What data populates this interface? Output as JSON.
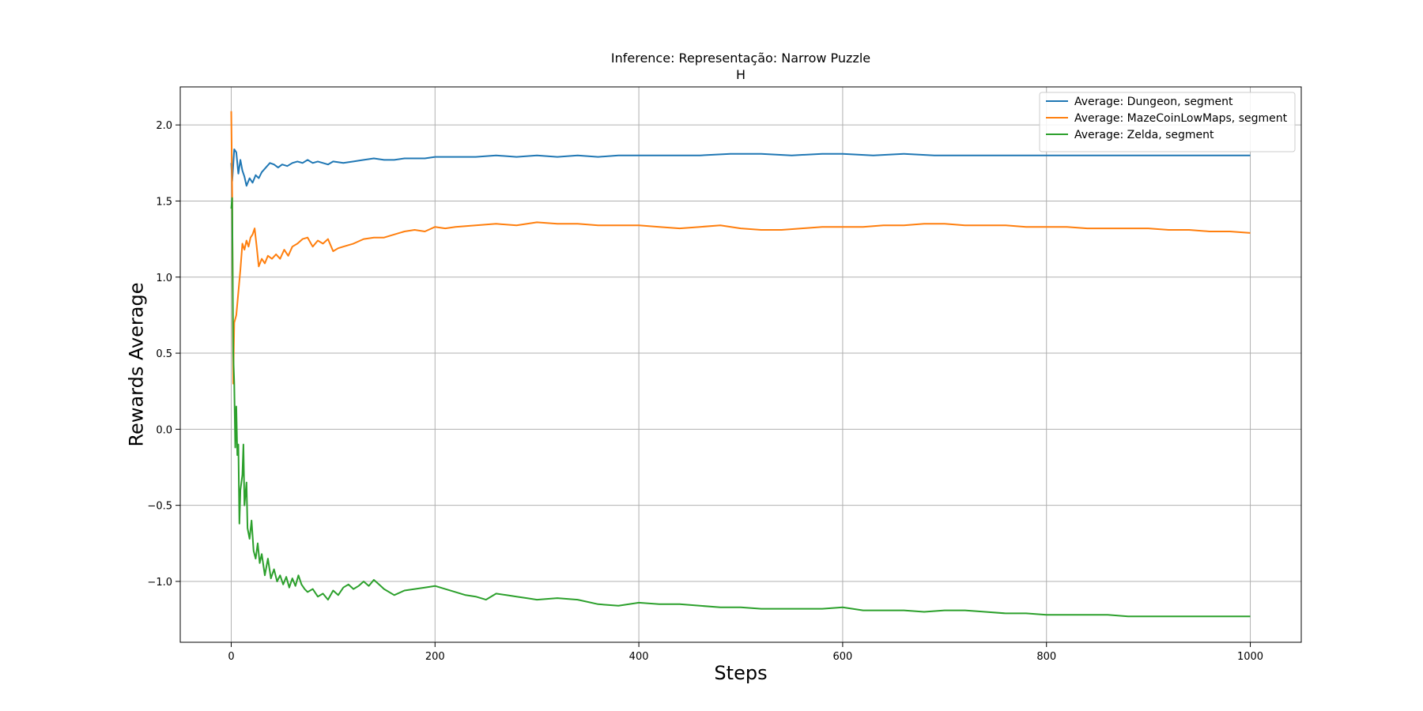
{
  "chart_data": {
    "type": "line",
    "title": "Inference: Representação: Narrow Puzzle",
    "subtitle": "H",
    "xlabel": "Steps",
    "ylabel": "Rewards Average",
    "xlim": [
      -50,
      1050
    ],
    "ylim": [
      -1.4,
      2.25
    ],
    "x_ticks": [
      0,
      200,
      400,
      600,
      800,
      1000
    ],
    "y_ticks": [
      -1.0,
      -0.5,
      0.0,
      0.5,
      1.0,
      1.5,
      2.0
    ],
    "x_tick_labels": [
      "0",
      "200",
      "400",
      "600",
      "800",
      "1000"
    ],
    "y_tick_labels": [
      "−1.0",
      "−0.5",
      "0.0",
      "0.5",
      "1.0",
      "1.5",
      "2.0"
    ],
    "grid": true,
    "legend_position": "top-right",
    "series": [
      {
        "name": "Average: Dungeon, segment",
        "color": "#1f77b4",
        "points": [
          [
            0,
            1.75
          ],
          [
            1,
            1.63
          ],
          [
            3,
            1.84
          ],
          [
            5,
            1.82
          ],
          [
            7,
            1.68
          ],
          [
            9,
            1.77
          ],
          [
            11,
            1.7
          ],
          [
            13,
            1.66
          ],
          [
            15,
            1.6
          ],
          [
            18,
            1.65
          ],
          [
            21,
            1.62
          ],
          [
            24,
            1.67
          ],
          [
            27,
            1.65
          ],
          [
            30,
            1.69
          ],
          [
            34,
            1.72
          ],
          [
            38,
            1.75
          ],
          [
            42,
            1.74
          ],
          [
            46,
            1.72
          ],
          [
            50,
            1.74
          ],
          [
            55,
            1.73
          ],
          [
            60,
            1.75
          ],
          [
            65,
            1.76
          ],
          [
            70,
            1.75
          ],
          [
            75,
            1.77
          ],
          [
            80,
            1.75
          ],
          [
            85,
            1.76
          ],
          [
            90,
            1.75
          ],
          [
            95,
            1.74
          ],
          [
            100,
            1.76
          ],
          [
            110,
            1.75
          ],
          [
            120,
            1.76
          ],
          [
            130,
            1.77
          ],
          [
            140,
            1.78
          ],
          [
            150,
            1.77
          ],
          [
            160,
            1.77
          ],
          [
            170,
            1.78
          ],
          [
            180,
            1.78
          ],
          [
            190,
            1.78
          ],
          [
            200,
            1.79
          ],
          [
            220,
            1.79
          ],
          [
            240,
            1.79
          ],
          [
            260,
            1.8
          ],
          [
            280,
            1.79
          ],
          [
            300,
            1.8
          ],
          [
            320,
            1.79
          ],
          [
            340,
            1.8
          ],
          [
            360,
            1.79
          ],
          [
            380,
            1.8
          ],
          [
            400,
            1.8
          ],
          [
            430,
            1.8
          ],
          [
            460,
            1.8
          ],
          [
            490,
            1.81
          ],
          [
            520,
            1.81
          ],
          [
            550,
            1.8
          ],
          [
            580,
            1.81
          ],
          [
            600,
            1.81
          ],
          [
            630,
            1.8
          ],
          [
            660,
            1.81
          ],
          [
            690,
            1.8
          ],
          [
            720,
            1.8
          ],
          [
            750,
            1.8
          ],
          [
            780,
            1.8
          ],
          [
            800,
            1.8
          ],
          [
            840,
            1.8
          ],
          [
            880,
            1.8
          ],
          [
            920,
            1.8
          ],
          [
            960,
            1.8
          ],
          [
            1000,
            1.8
          ]
        ]
      },
      {
        "name": "Average: MazeCoinLowMaps, segment",
        "color": "#ff7f0e",
        "points": [
          [
            0,
            2.09
          ],
          [
            1,
            1.55
          ],
          [
            2,
            0.3
          ],
          [
            3,
            0.7
          ],
          [
            5,
            0.75
          ],
          [
            7,
            0.9
          ],
          [
            9,
            1.05
          ],
          [
            11,
            1.22
          ],
          [
            13,
            1.18
          ],
          [
            15,
            1.24
          ],
          [
            17,
            1.2
          ],
          [
            19,
            1.26
          ],
          [
            21,
            1.28
          ],
          [
            23,
            1.32
          ],
          [
            25,
            1.2
          ],
          [
            27,
            1.07
          ],
          [
            30,
            1.12
          ],
          [
            33,
            1.09
          ],
          [
            36,
            1.14
          ],
          [
            40,
            1.12
          ],
          [
            44,
            1.15
          ],
          [
            48,
            1.12
          ],
          [
            52,
            1.18
          ],
          [
            56,
            1.14
          ],
          [
            60,
            1.2
          ],
          [
            65,
            1.22
          ],
          [
            70,
            1.25
          ],
          [
            75,
            1.26
          ],
          [
            80,
            1.2
          ],
          [
            85,
            1.24
          ],
          [
            90,
            1.22
          ],
          [
            95,
            1.25
          ],
          [
            100,
            1.17
          ],
          [
            105,
            1.19
          ],
          [
            110,
            1.2
          ],
          [
            120,
            1.22
          ],
          [
            130,
            1.25
          ],
          [
            140,
            1.26
          ],
          [
            150,
            1.26
          ],
          [
            160,
            1.28
          ],
          [
            170,
            1.3
          ],
          [
            180,
            1.31
          ],
          [
            190,
            1.3
          ],
          [
            200,
            1.33
          ],
          [
            210,
            1.32
          ],
          [
            220,
            1.33
          ],
          [
            240,
            1.34
          ],
          [
            260,
            1.35
          ],
          [
            280,
            1.34
          ],
          [
            300,
            1.36
          ],
          [
            320,
            1.35
          ],
          [
            340,
            1.35
          ],
          [
            360,
            1.34
          ],
          [
            380,
            1.34
          ],
          [
            400,
            1.34
          ],
          [
            420,
            1.33
          ],
          [
            440,
            1.32
          ],
          [
            460,
            1.33
          ],
          [
            480,
            1.34
          ],
          [
            500,
            1.32
          ],
          [
            520,
            1.31
          ],
          [
            540,
            1.31
          ],
          [
            560,
            1.32
          ],
          [
            580,
            1.33
          ],
          [
            600,
            1.33
          ],
          [
            620,
            1.33
          ],
          [
            640,
            1.34
          ],
          [
            660,
            1.34
          ],
          [
            680,
            1.35
          ],
          [
            700,
            1.35
          ],
          [
            720,
            1.34
          ],
          [
            740,
            1.34
          ],
          [
            760,
            1.34
          ],
          [
            780,
            1.33
          ],
          [
            800,
            1.33
          ],
          [
            820,
            1.33
          ],
          [
            840,
            1.32
          ],
          [
            860,
            1.32
          ],
          [
            880,
            1.32
          ],
          [
            900,
            1.32
          ],
          [
            920,
            1.31
          ],
          [
            940,
            1.31
          ],
          [
            960,
            1.3
          ],
          [
            980,
            1.3
          ],
          [
            1000,
            1.29
          ]
        ]
      },
      {
        "name": "Average: Zelda, segment",
        "color": "#2ca02c",
        "points": [
          [
            0,
            1.45
          ],
          [
            1,
            1.52
          ],
          [
            2,
            0.5
          ],
          [
            3,
            0.3
          ],
          [
            4,
            -0.12
          ],
          [
            5,
            0.15
          ],
          [
            6,
            -0.17
          ],
          [
            7,
            -0.1
          ],
          [
            8,
            -0.62
          ],
          [
            9,
            -0.4
          ],
          [
            11,
            -0.3
          ],
          [
            12,
            -0.1
          ],
          [
            13,
            -0.5
          ],
          [
            15,
            -0.35
          ],
          [
            16,
            -0.65
          ],
          [
            18,
            -0.72
          ],
          [
            20,
            -0.6
          ],
          [
            22,
            -0.8
          ],
          [
            24,
            -0.85
          ],
          [
            26,
            -0.75
          ],
          [
            28,
            -0.88
          ],
          [
            30,
            -0.82
          ],
          [
            33,
            -0.96
          ],
          [
            36,
            -0.85
          ],
          [
            39,
            -0.98
          ],
          [
            42,
            -0.92
          ],
          [
            45,
            -1.0
          ],
          [
            48,
            -0.96
          ],
          [
            51,
            -1.02
          ],
          [
            54,
            -0.97
          ],
          [
            57,
            -1.04
          ],
          [
            60,
            -0.98
          ],
          [
            63,
            -1.03
          ],
          [
            66,
            -0.96
          ],
          [
            69,
            -1.02
          ],
          [
            72,
            -1.05
          ],
          [
            75,
            -1.07
          ],
          [
            80,
            -1.05
          ],
          [
            85,
            -1.1
          ],
          [
            90,
            -1.08
          ],
          [
            95,
            -1.12
          ],
          [
            100,
            -1.06
          ],
          [
            105,
            -1.09
          ],
          [
            110,
            -1.04
          ],
          [
            115,
            -1.02
          ],
          [
            120,
            -1.05
          ],
          [
            125,
            -1.03
          ],
          [
            130,
            -1.0
          ],
          [
            135,
            -1.03
          ],
          [
            140,
            -0.99
          ],
          [
            145,
            -1.02
          ],
          [
            150,
            -1.05
          ],
          [
            160,
            -1.09
          ],
          [
            170,
            -1.06
          ],
          [
            180,
            -1.05
          ],
          [
            190,
            -1.04
          ],
          [
            200,
            -1.03
          ],
          [
            210,
            -1.05
          ],
          [
            220,
            -1.07
          ],
          [
            230,
            -1.09
          ],
          [
            240,
            -1.1
          ],
          [
            250,
            -1.12
          ],
          [
            260,
            -1.08
          ],
          [
            270,
            -1.09
          ],
          [
            280,
            -1.1
          ],
          [
            290,
            -1.11
          ],
          [
            300,
            -1.12
          ],
          [
            320,
            -1.11
          ],
          [
            340,
            -1.12
          ],
          [
            360,
            -1.15
          ],
          [
            380,
            -1.16
          ],
          [
            400,
            -1.14
          ],
          [
            420,
            -1.15
          ],
          [
            440,
            -1.15
          ],
          [
            460,
            -1.16
          ],
          [
            480,
            -1.17
          ],
          [
            500,
            -1.17
          ],
          [
            520,
            -1.18
          ],
          [
            540,
            -1.18
          ],
          [
            560,
            -1.18
          ],
          [
            580,
            -1.18
          ],
          [
            600,
            -1.17
          ],
          [
            620,
            -1.19
          ],
          [
            640,
            -1.19
          ],
          [
            660,
            -1.19
          ],
          [
            680,
            -1.2
          ],
          [
            700,
            -1.19
          ],
          [
            720,
            -1.19
          ],
          [
            740,
            -1.2
          ],
          [
            760,
            -1.21
          ],
          [
            780,
            -1.21
          ],
          [
            800,
            -1.22
          ],
          [
            820,
            -1.22
          ],
          [
            840,
            -1.22
          ],
          [
            860,
            -1.22
          ],
          [
            880,
            -1.23
          ],
          [
            900,
            -1.23
          ],
          [
            920,
            -1.23
          ],
          [
            940,
            -1.23
          ],
          [
            960,
            -1.23
          ],
          [
            980,
            -1.23
          ],
          [
            1000,
            -1.23
          ]
        ]
      }
    ]
  }
}
